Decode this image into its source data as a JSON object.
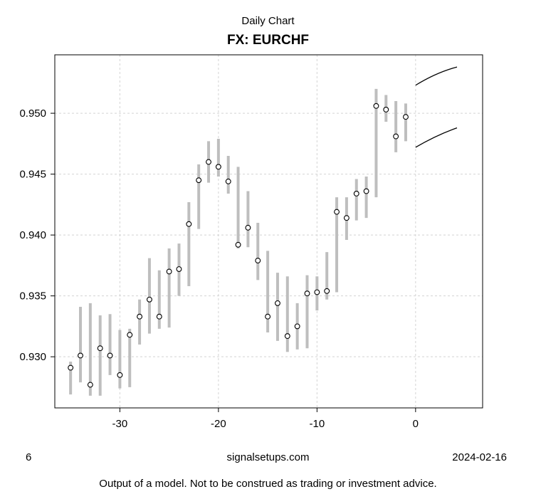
{
  "header": {
    "title": "Daily Chart",
    "subtitle": "FX: EURCHF"
  },
  "footer": {
    "page_number": "6",
    "source": "signalsetups.com",
    "date": "2024-02-16",
    "disclaimer": "Output of a model. Not to be construed as trading or investment advice."
  },
  "colors": {
    "background": "#ffffff",
    "bar": "#bebebe",
    "grid": "#d4d4d4",
    "axis": "#000000",
    "text": "#000000",
    "point_fill": "#ffffff",
    "forecast": "#000000"
  },
  "chart_data": {
    "type": "bar",
    "subtype": "high-low-close",
    "title": "Daily Chart",
    "subtitle": "FX: EURCHF",
    "xlabel": "",
    "ylabel": "",
    "xlim": [
      -36.6,
      6.8
    ],
    "ylim": [
      0.9258,
      0.9548
    ],
    "grid": true,
    "x_ticks": [
      -30,
      -20,
      -10,
      0
    ],
    "x_tick_labels": [
      "-30",
      "-20",
      "-10",
      "0"
    ],
    "y_ticks": [
      0.93,
      0.935,
      0.94,
      0.945,
      0.95
    ],
    "y_tick_labels": [
      "0.930",
      "0.935",
      "0.940",
      "0.945",
      "0.950"
    ],
    "bars": [
      {
        "day": -35,
        "high": 0.9296,
        "low": 0.9269,
        "close": 0.9291
      },
      {
        "day": -34,
        "high": 0.9341,
        "low": 0.9279,
        "close": 0.9301
      },
      {
        "day": -33,
        "high": 0.9344,
        "low": 0.9268,
        "close": 0.9277
      },
      {
        "day": -32,
        "high": 0.9334,
        "low": 0.9268,
        "close": 0.9307
      },
      {
        "day": -31,
        "high": 0.9335,
        "low": 0.9285,
        "close": 0.9301
      },
      {
        "day": -30,
        "high": 0.9322,
        "low": 0.9274,
        "close": 0.9285
      },
      {
        "day": -29,
        "high": 0.9323,
        "low": 0.9275,
        "close": 0.9318
      },
      {
        "day": -28,
        "high": 0.9347,
        "low": 0.931,
        "close": 0.9333
      },
      {
        "day": -27,
        "high": 0.9381,
        "low": 0.9319,
        "close": 0.9347
      },
      {
        "day": -26,
        "high": 0.9371,
        "low": 0.9323,
        "close": 0.9333
      },
      {
        "day": -25,
        "high": 0.9389,
        "low": 0.9324,
        "close": 0.937
      },
      {
        "day": -24,
        "high": 0.9393,
        "low": 0.935,
        "close": 0.9372
      },
      {
        "day": -23,
        "high": 0.9427,
        "low": 0.9358,
        "close": 0.9409
      },
      {
        "day": -22,
        "high": 0.9458,
        "low": 0.9405,
        "close": 0.9445
      },
      {
        "day": -21,
        "high": 0.9477,
        "low": 0.9443,
        "close": 0.946
      },
      {
        "day": -20,
        "high": 0.9479,
        "low": 0.9448,
        "close": 0.9456
      },
      {
        "day": -19,
        "high": 0.9465,
        "low": 0.9434,
        "close": 0.9444
      },
      {
        "day": -18,
        "high": 0.9456,
        "low": 0.9389,
        "close": 0.9392
      },
      {
        "day": -17,
        "high": 0.9436,
        "low": 0.939,
        "close": 0.9406
      },
      {
        "day": -16,
        "high": 0.941,
        "low": 0.9363,
        "close": 0.9379
      },
      {
        "day": -15,
        "high": 0.9387,
        "low": 0.932,
        "close": 0.9333
      },
      {
        "day": -14,
        "high": 0.9369,
        "low": 0.9313,
        "close": 0.9344
      },
      {
        "day": -13,
        "high": 0.9366,
        "low": 0.9304,
        "close": 0.9317
      },
      {
        "day": -12,
        "high": 0.9344,
        "low": 0.9306,
        "close": 0.9325
      },
      {
        "day": -11,
        "high": 0.9367,
        "low": 0.9307,
        "close": 0.9352
      },
      {
        "day": -10,
        "high": 0.9366,
        "low": 0.9338,
        "close": 0.9353
      },
      {
        "day": -9,
        "high": 0.9386,
        "low": 0.9347,
        "close": 0.9354
      },
      {
        "day": -8,
        "high": 0.9431,
        "low": 0.9353,
        "close": 0.9419
      },
      {
        "day": -7,
        "high": 0.9431,
        "low": 0.9396,
        "close": 0.9414
      },
      {
        "day": -6,
        "high": 0.9446,
        "low": 0.9412,
        "close": 0.9434
      },
      {
        "day": -5,
        "high": 0.9448,
        "low": 0.9414,
        "close": 0.9436
      },
      {
        "day": -4,
        "high": 0.952,
        "low": 0.9431,
        "close": 0.9506
      },
      {
        "day": -3,
        "high": 0.9515,
        "low": 0.9493,
        "close": 0.9503
      },
      {
        "day": -2,
        "high": 0.951,
        "low": 0.9468,
        "close": 0.9481
      },
      {
        "day": -1,
        "high": 0.9508,
        "low": 0.9477,
        "close": 0.9497
      }
    ],
    "forecast_bands": [
      {
        "name": "upper",
        "x": [
          0,
          2.1,
          4.2
        ],
        "y": [
          0.9523,
          0.9532,
          0.9538
        ]
      },
      {
        "name": "lower",
        "x": [
          0,
          2.1,
          4.2
        ],
        "y": [
          0.9472,
          0.9481,
          0.9488
        ]
      }
    ]
  }
}
